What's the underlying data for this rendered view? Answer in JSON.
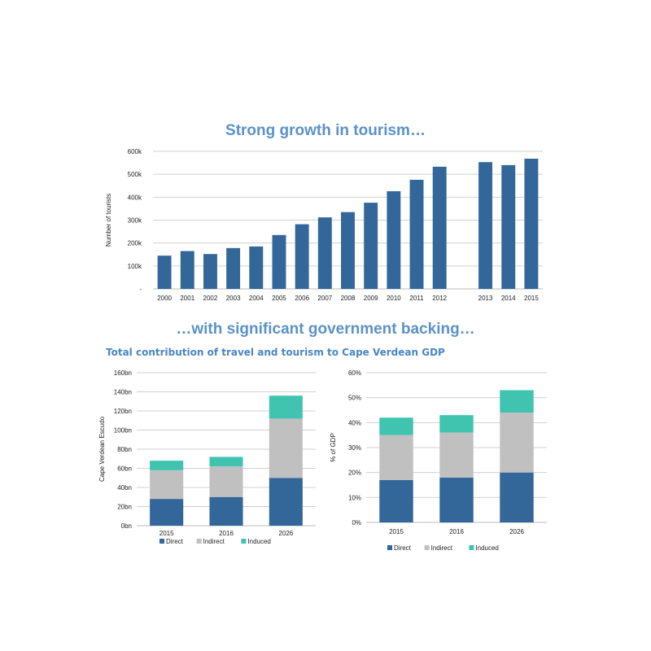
{
  "heading_top": "Strong growth in tourism…",
  "heading_bottom": "…with significant government backing…",
  "subtitle": "Total contribution of travel and tourism to Cape Verdean GDP",
  "colors": {
    "bar": "#336699",
    "direct": "#336699",
    "indirect": "#c0c0c0",
    "induced": "#40c4b0",
    "grid": "#d0d0d0",
    "heading": "#5b92c7"
  },
  "chart_data": [
    {
      "type": "bar",
      "title": "",
      "xlabel": "",
      "ylabel": "Number of tourists",
      "categories": [
        "2000",
        "2001",
        "2002",
        "2003",
        "2004",
        "2005",
        "2006",
        "2007",
        "2008",
        "2009",
        "2010",
        "2011",
        "2012",
        "",
        "2013",
        "2014",
        "2015"
      ],
      "values": [
        145000,
        165000,
        152000,
        178000,
        185000,
        235000,
        282000,
        312000,
        335000,
        376000,
        426000,
        476000,
        533000,
        null,
        553000,
        540000,
        568000
      ],
      "ylim": [
        0,
        600000
      ],
      "yticks": [
        0,
        100000,
        200000,
        300000,
        400000,
        500000,
        600000
      ],
      "ytick_labels": [
        "-",
        "100k",
        "200k",
        "300k",
        "400k",
        "500k",
        "600k"
      ],
      "grid": true
    },
    {
      "type": "bar",
      "stacked": true,
      "title": "",
      "xlabel": "",
      "ylabel": "Cape Verdean Escudo",
      "categories": [
        "2015",
        "2016",
        "2026"
      ],
      "series": [
        {
          "name": "Direct",
          "values": [
            28,
            30,
            50
          ]
        },
        {
          "name": "Indirect",
          "values": [
            30,
            32,
            62
          ]
        },
        {
          "name": "Induced",
          "values": [
            10,
            10,
            24
          ]
        }
      ],
      "ylim": [
        0,
        160
      ],
      "yticks": [
        0,
        20,
        40,
        60,
        80,
        100,
        120,
        140,
        160
      ],
      "ytick_labels": [
        "0bn",
        "20bn",
        "40bn",
        "60bn",
        "80bn",
        "100bn",
        "120bn",
        "140bn",
        "160bn"
      ],
      "legend": "bottom",
      "grid": true
    },
    {
      "type": "bar",
      "stacked": true,
      "title": "",
      "xlabel": "",
      "ylabel": "% of GDP",
      "categories": [
        "2015",
        "2016",
        "2026"
      ],
      "series": [
        {
          "name": "Direct",
          "values": [
            17,
            18,
            20
          ]
        },
        {
          "name": "Indirect",
          "values": [
            18,
            18,
            24
          ]
        },
        {
          "name": "Induced",
          "values": [
            7,
            7,
            9
          ]
        }
      ],
      "ylim": [
        0,
        60
      ],
      "yticks": [
        0,
        10,
        20,
        30,
        40,
        50,
        60
      ],
      "ytick_labels": [
        "0%",
        "10%",
        "20%",
        "30%",
        "40%",
        "50%",
        "60%"
      ],
      "legend": "bottom",
      "grid": true
    }
  ]
}
